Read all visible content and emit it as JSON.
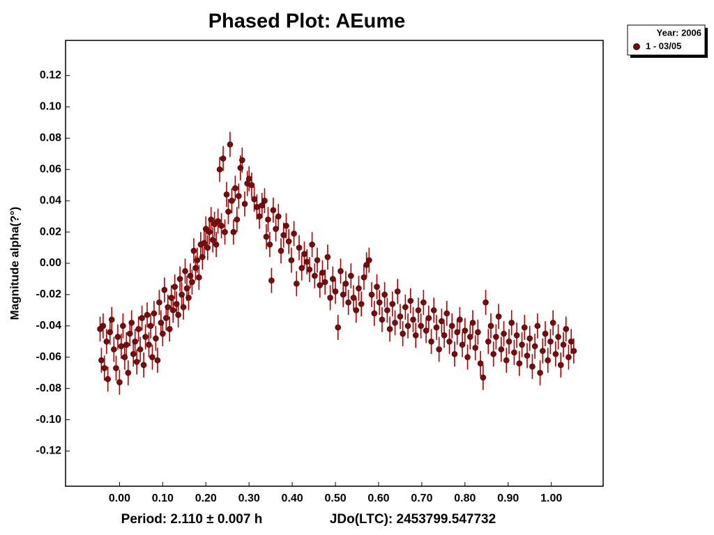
{
  "chart_data": {
    "type": "scatter",
    "title": "Phased Plot: AEume",
    "x_label": "Period: 2.110 ± 0.007 h",
    "x_label_right": "JDo(LTC): 2453799.547732",
    "y_label": "Magnitude alpha(?°)",
    "legend_title": "Year: 2006",
    "legend": "top-right",
    "grid": false,
    "xlim": [
      -0.125,
      1.12
    ],
    "ylim": [
      -0.1425,
      0.1425
    ],
    "xticks": [
      {
        "value": 0,
        "label": "0.00"
      },
      {
        "value": 0.1,
        "label": "0.10"
      },
      {
        "value": 0.2,
        "label": "0.20"
      },
      {
        "value": 0.3,
        "label": "0.30"
      },
      {
        "value": 0.4,
        "label": "0.40"
      },
      {
        "value": 0.5,
        "label": "0.50"
      },
      {
        "value": 0.6,
        "label": "0.60"
      },
      {
        "value": 0.7,
        "label": "0.70"
      },
      {
        "value": 0.8,
        "label": "0.80"
      },
      {
        "value": 0.9,
        "label": "0.90"
      },
      {
        "value": 1,
        "label": "1.00"
      }
    ],
    "yticks": [
      0.12,
      {
        "value": 0.1,
        "label": "0.10"
      },
      0.08,
      0.06,
      0.04,
      0.02,
      {
        "value": 0,
        "label": "0.00"
      },
      -0.02,
      -0.04,
      -0.06,
      -0.08,
      {
        "value": -0.1,
        "label": "-0.10"
      },
      -0.12
    ],
    "x": [
      -0.045,
      -0.042,
      -0.038,
      -0.035,
      -0.03,
      -0.027,
      -0.022,
      -0.018,
      -0.013,
      -0.008,
      -0.004,
      0.0,
      0.004,
      0.008,
      0.012,
      0.016,
      0.02,
      0.024,
      0.028,
      0.032,
      0.036,
      0.04,
      0.044,
      0.048,
      0.052,
      0.056,
      0.06,
      0.064,
      0.068,
      0.072,
      0.076,
      0.08,
      0.084,
      0.088,
      0.092,
      0.096,
      0.1,
      0.104,
      0.108,
      0.112,
      0.116,
      0.12,
      0.124,
      0.128,
      0.132,
      0.136,
      0.14,
      0.144,
      0.148,
      0.152,
      0.156,
      0.16,
      0.164,
      0.168,
      0.172,
      0.176,
      0.18,
      0.184,
      0.188,
      0.192,
      0.196,
      0.2,
      0.204,
      0.208,
      0.212,
      0.216,
      0.22,
      0.224,
      0.228,
      0.232,
      0.236,
      0.24,
      0.244,
      0.248,
      0.252,
      0.256,
      0.26,
      0.264,
      0.268,
      0.272,
      0.276,
      0.28,
      0.284,
      0.29,
      0.296,
      0.3,
      0.306,
      0.312,
      0.318,
      0.324,
      0.33,
      0.336,
      0.34,
      0.344,
      0.348,
      0.352,
      0.356,
      0.362,
      0.368,
      0.374,
      0.38,
      0.386,
      0.392,
      0.398,
      0.404,
      0.41,
      0.416,
      0.422,
      0.428,
      0.434,
      0.44,
      0.446,
      0.452,
      0.458,
      0.464,
      0.47,
      0.476,
      0.482,
      0.488,
      0.494,
      0.5,
      0.506,
      0.512,
      0.518,
      0.524,
      0.53,
      0.536,
      0.542,
      0.548,
      0.554,
      0.56,
      0.566,
      0.572,
      0.578,
      0.584,
      0.59,
      0.596,
      0.602,
      0.608,
      0.614,
      0.62,
      0.626,
      0.632,
      0.638,
      0.644,
      0.65,
      0.656,
      0.662,
      0.668,
      0.674,
      0.68,
      0.686,
      0.692,
      0.698,
      0.704,
      0.71,
      0.716,
      0.722,
      0.728,
      0.734,
      0.74,
      0.746,
      0.752,
      0.758,
      0.764,
      0.77,
      0.776,
      0.782,
      0.788,
      0.794,
      0.8,
      0.806,
      0.812,
      0.818,
      0.824,
      0.83,
      0.836,
      0.842,
      0.848,
      0.854,
      0.86,
      0.866,
      0.872,
      0.878,
      0.884,
      0.89,
      0.896,
      0.902,
      0.908,
      0.914,
      0.92,
      0.926,
      0.932,
      0.938,
      0.944,
      0.95,
      0.956,
      0.962,
      0.968,
      0.974,
      0.98,
      0.986,
      0.992,
      0.998,
      1.004,
      1.01,
      1.016,
      1.022,
      1.028,
      1.034,
      1.04,
      1.046,
      1.052
    ],
    "series": [
      {
        "name": "1 - 03/05",
        "color": "#7a0a0a",
        "error_color": "#b00000",
        "error": 0.008,
        "values": [
          -0.042,
          -0.062,
          -0.04,
          -0.067,
          -0.05,
          -0.074,
          -0.044,
          -0.036,
          -0.055,
          -0.067,
          -0.047,
          -0.076,
          -0.053,
          -0.04,
          -0.06,
          -0.052,
          -0.07,
          -0.045,
          -0.038,
          -0.058,
          -0.05,
          -0.063,
          -0.042,
          -0.055,
          -0.035,
          -0.065,
          -0.047,
          -0.033,
          -0.052,
          -0.04,
          -0.06,
          -0.032,
          -0.048,
          -0.062,
          -0.025,
          -0.038,
          -0.045,
          -0.017,
          -0.035,
          -0.028,
          -0.042,
          -0.022,
          -0.03,
          -0.015,
          -0.026,
          -0.033,
          -0.01,
          -0.02,
          -0.028,
          -0.005,
          -0.016,
          -0.022,
          -0.008,
          -0.012,
          0.008,
          -0.003,
          0.002,
          -0.009,
          0.012,
          0.004,
          0.013,
          0.022,
          0.01,
          0.02,
          0.028,
          0.015,
          0.025,
          0.012,
          0.027,
          0.06,
          0.024,
          0.067,
          0.02,
          0.044,
          0.033,
          0.076,
          0.04,
          0.02,
          0.048,
          0.028,
          0.043,
          0.061,
          0.066,
          0.038,
          0.051,
          0.054,
          0.05,
          0.041,
          0.036,
          0.03,
          0.037,
          0.04,
          0.017,
          0.028,
          0.012,
          -0.011,
          0.034,
          0.022,
          0.03,
          0.008,
          0.018,
          0.024,
          0.014,
          0.002,
          0.019,
          -0.013,
          0.01,
          -0.003,
          0.006,
          0.001,
          -0.004,
          0.012,
          -0.008,
          0.002,
          -0.014,
          -0.006,
          -0.012,
          0.004,
          -0.022,
          -0.01,
          -0.018,
          -0.041,
          -0.005,
          -0.02,
          -0.013,
          -0.025,
          -0.008,
          -0.022,
          -0.03,
          -0.016,
          -0.026,
          -0.009,
          -0.001,
          0.002,
          -0.02,
          -0.032,
          -0.015,
          -0.025,
          -0.036,
          -0.02,
          -0.03,
          -0.042,
          -0.026,
          -0.038,
          -0.018,
          -0.034,
          -0.045,
          -0.028,
          -0.04,
          -0.024,
          -0.036,
          -0.046,
          -0.03,
          -0.04,
          -0.025,
          -0.043,
          -0.035,
          -0.05,
          -0.03,
          -0.041,
          -0.055,
          -0.037,
          -0.046,
          -0.032,
          -0.05,
          -0.04,
          -0.058,
          -0.044,
          -0.036,
          -0.052,
          -0.043,
          -0.06,
          -0.047,
          -0.038,
          -0.054,
          -0.044,
          -0.064,
          -0.073,
          -0.025,
          -0.05,
          -0.04,
          -0.058,
          -0.047,
          -0.034,
          -0.055,
          -0.045,
          -0.062,
          -0.05,
          -0.038,
          -0.057,
          -0.046,
          -0.064,
          -0.052,
          -0.041,
          -0.059,
          -0.048,
          -0.066,
          -0.053,
          -0.04,
          -0.07,
          -0.056,
          -0.045,
          -0.062,
          -0.05,
          -0.038,
          -0.058,
          -0.047,
          -0.065,
          -0.052,
          -0.042,
          -0.06,
          -0.05,
          -0.056
        ]
      }
    ]
  }
}
